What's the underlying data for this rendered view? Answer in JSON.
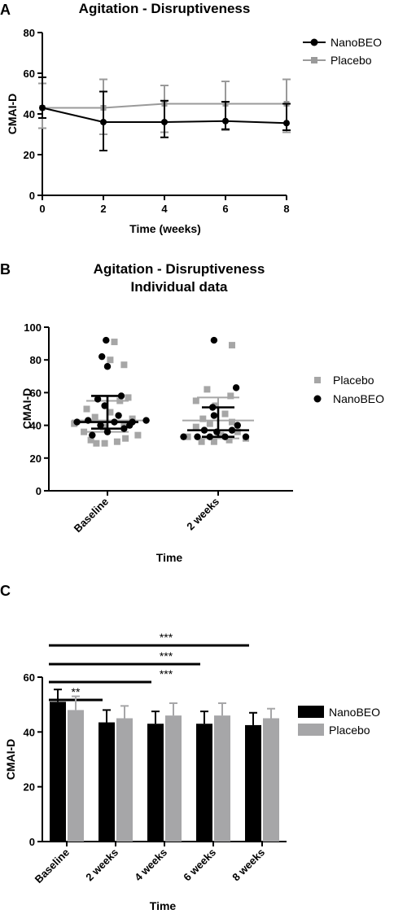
{
  "chart_data": [
    {
      "panel": "A",
      "type": "line",
      "title": "Agitation - Disruptiveness",
      "xlabel": "Time (weeks)",
      "ylabel": "CMAI-D",
      "xlim": [
        0,
        8
      ],
      "ylim": [
        0,
        80
      ],
      "xticks": [
        0,
        2,
        4,
        6,
        8
      ],
      "yticks": [
        0,
        20,
        40,
        60,
        80
      ],
      "legend_position": "top-right",
      "series": [
        {
          "name": "NanoBEO",
          "color": "#000000",
          "marker": "circle",
          "x": [
            0,
            2,
            4,
            6,
            8
          ],
          "y": [
            43,
            36,
            36,
            36.5,
            35.5
          ],
          "error_low": [
            38,
            22,
            28.5,
            32.5,
            32
          ],
          "error_high": [
            58,
            51,
            46.5,
            46,
            45
          ]
        },
        {
          "name": "Placebo",
          "color": "#9a9a9a",
          "marker": "square",
          "x": [
            0,
            2,
            4,
            6,
            8
          ],
          "y": [
            43,
            43,
            45,
            45,
            45
          ],
          "error_low": [
            33,
            30,
            31,
            32,
            31
          ],
          "error_high": [
            55,
            57,
            54,
            56,
            57
          ]
        }
      ]
    },
    {
      "panel": "B",
      "type": "scatter",
      "title": "Agitation - Disruptiveness",
      "subtitle": "Individual data",
      "xlabel": "Time",
      "ylabel": "CMAI-D",
      "categories": [
        "Baseline",
        "2 weeks"
      ],
      "ylim": [
        0,
        100
      ],
      "yticks": [
        0,
        20,
        40,
        60,
        80,
        100
      ],
      "legend_position": "right",
      "series": [
        {
          "name": "Placebo",
          "color": "#a6a6a6",
          "marker": "square",
          "points": [
            {
              "category": 0,
              "offset": -0.08,
              "y": 29
            },
            {
              "category": 0,
              "offset": -0.02,
              "y": 29
            },
            {
              "category": 0,
              "offset": 0.07,
              "y": 30
            },
            {
              "category": 0,
              "offset": -0.12,
              "y": 31
            },
            {
              "category": 0,
              "offset": 0.13,
              "y": 32
            },
            {
              "category": 0,
              "offset": 0.22,
              "y": 34
            },
            {
              "category": 0,
              "offset": -0.17,
              "y": 36
            },
            {
              "category": 0,
              "offset": -0.03,
              "y": 39
            },
            {
              "category": 0,
              "offset": 0.12,
              "y": 41
            },
            {
              "category": 0,
              "offset": -0.24,
              "y": 41
            },
            {
              "category": 0,
              "offset": 0.18,
              "y": 44
            },
            {
              "category": 0,
              "offset": -0.09,
              "y": 45
            },
            {
              "category": 0,
              "offset": 0.02,
              "y": 48
            },
            {
              "category": 0,
              "offset": -0.15,
              "y": 50
            },
            {
              "category": 0,
              "offset": 0.09,
              "y": 55
            },
            {
              "category": 0,
              "offset": 0.15,
              "y": 57
            },
            {
              "category": 0,
              "offset": 0.12,
              "y": 77
            },
            {
              "category": 0,
              "offset": 0.02,
              "y": 80
            },
            {
              "category": 0,
              "offset": 0.05,
              "y": 91
            },
            {
              "category": 1,
              "offset": -0.12,
              "y": 30
            },
            {
              "category": 1,
              "offset": -0.03,
              "y": 30
            },
            {
              "category": 1,
              "offset": 0.08,
              "y": 31
            },
            {
              "category": 1,
              "offset": 0.2,
              "y": 32
            },
            {
              "category": 1,
              "offset": -0.22,
              "y": 33
            },
            {
              "category": 1,
              "offset": 0.02,
              "y": 34
            },
            {
              "category": 1,
              "offset": 0.14,
              "y": 36
            },
            {
              "category": 1,
              "offset": -0.16,
              "y": 39
            },
            {
              "category": 1,
              "offset": -0.06,
              "y": 41
            },
            {
              "category": 1,
              "offset": 0.1,
              "y": 42
            },
            {
              "category": 1,
              "offset": -0.11,
              "y": 44
            },
            {
              "category": 1,
              "offset": 0.05,
              "y": 47
            },
            {
              "category": 1,
              "offset": -0.02,
              "y": 52
            },
            {
              "category": 1,
              "offset": -0.16,
              "y": 55
            },
            {
              "category": 1,
              "offset": 0.09,
              "y": 58
            },
            {
              "category": 1,
              "offset": -0.08,
              "y": 62
            },
            {
              "category": 1,
              "offset": 0.1,
              "y": 89
            }
          ],
          "median": [
            43,
            43
          ],
          "iqr_low": [
            36,
            32
          ],
          "iqr_high": [
            55,
            57
          ]
        },
        {
          "name": "NanoBEO",
          "color": "#000000",
          "marker": "circle",
          "points": [
            {
              "category": 0,
              "offset": -0.11,
              "y": 34
            },
            {
              "category": 0,
              "offset": 0.0,
              "y": 36
            },
            {
              "category": 0,
              "offset": 0.12,
              "y": 38
            },
            {
              "category": 0,
              "offset": -0.05,
              "y": 40
            },
            {
              "category": 0,
              "offset": 0.16,
              "y": 40
            },
            {
              "category": 0,
              "offset": -0.22,
              "y": 42
            },
            {
              "category": 0,
              "offset": 0.05,
              "y": 42
            },
            {
              "category": 0,
              "offset": 0.18,
              "y": 42
            },
            {
              "category": 0,
              "offset": 0.28,
              "y": 43
            },
            {
              "category": 0,
              "offset": -0.14,
              "y": 43
            },
            {
              "category": 0,
              "offset": 0.08,
              "y": 46
            },
            {
              "category": 0,
              "offset": -0.02,
              "y": 52
            },
            {
              "category": 0,
              "offset": -0.07,
              "y": 56
            },
            {
              "category": 0,
              "offset": 0.1,
              "y": 58
            },
            {
              "category": 0,
              "offset": 0.0,
              "y": 76
            },
            {
              "category": 0,
              "offset": -0.04,
              "y": 82
            },
            {
              "category": 0,
              "offset": -0.01,
              "y": 92
            },
            {
              "category": 1,
              "offset": -0.25,
              "y": 33
            },
            {
              "category": 1,
              "offset": -0.15,
              "y": 33
            },
            {
              "category": 1,
              "offset": -0.06,
              "y": 33
            },
            {
              "category": 1,
              "offset": 0.05,
              "y": 33
            },
            {
              "category": 1,
              "offset": 0.2,
              "y": 33
            },
            {
              "category": 1,
              "offset": -0.01,
              "y": 36
            },
            {
              "category": 1,
              "offset": 0.1,
              "y": 37
            },
            {
              "category": 1,
              "offset": -0.1,
              "y": 37
            },
            {
              "category": 1,
              "offset": 0.14,
              "y": 40
            },
            {
              "category": 1,
              "offset": -0.03,
              "y": 46
            },
            {
              "category": 1,
              "offset": -0.04,
              "y": 51
            },
            {
              "category": 1,
              "offset": 0.13,
              "y": 63
            },
            {
              "category": 1,
              "offset": -0.03,
              "y": 92
            }
          ],
          "median": [
            42,
            37
          ],
          "iqr_low": [
            38,
            33
          ],
          "iqr_high": [
            58,
            51
          ]
        }
      ]
    },
    {
      "panel": "C",
      "type": "bar",
      "xlabel": "Time",
      "ylabel": "CMAI-D",
      "categories": [
        "Baseline",
        "2 weeks",
        "4 weeks",
        "6 weeks",
        "8 weeks"
      ],
      "ylim": [
        0,
        60
      ],
      "yticks": [
        0,
        20,
        40,
        60
      ],
      "legend_position": "right",
      "series": [
        {
          "name": "NanoBEO",
          "color": "#000000",
          "values": [
            51,
            43.5,
            43,
            43,
            42.5
          ],
          "error": [
            4.5,
            4.5,
            4.5,
            4.5,
            4.5
          ]
        },
        {
          "name": "Placebo",
          "color": "#a6a6a8",
          "values": [
            48,
            45,
            46,
            46,
            45
          ],
          "error": [
            5,
            4.5,
            4.5,
            4.5,
            3.5
          ]
        }
      ],
      "significance": [
        {
          "from": "Baseline",
          "to": "2 weeks",
          "label": "**"
        },
        {
          "from": "Baseline",
          "to": "4 weeks",
          "label": "***"
        },
        {
          "from": "Baseline",
          "to": "6 weeks",
          "label": "***"
        },
        {
          "from": "Baseline",
          "to": "8 weeks",
          "label": "***"
        }
      ]
    }
  ]
}
